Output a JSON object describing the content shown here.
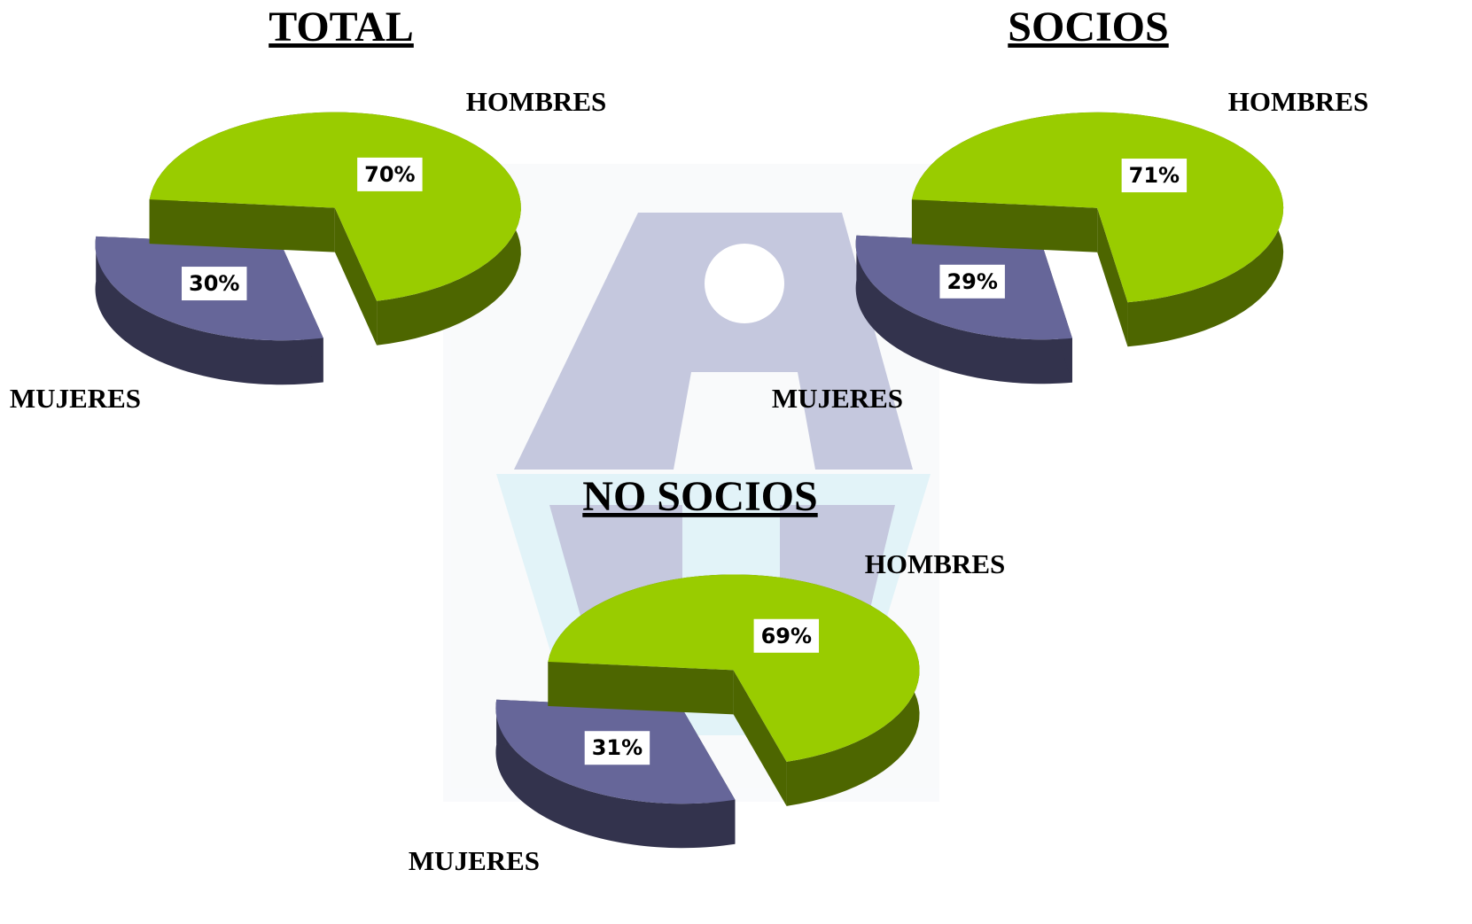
{
  "chart_data": [
    {
      "type": "pie",
      "title": "TOTAL",
      "categories": [
        "HOMBRES",
        "MUJERES"
      ],
      "values": [
        70,
        30
      ],
      "value_labels": [
        "70%",
        "30%"
      ],
      "colors": [
        "#99cc00",
        "#666699"
      ]
    },
    {
      "type": "pie",
      "title": "SOCIOS",
      "categories": [
        "HOMBRES",
        "MUJERES"
      ],
      "values": [
        71,
        29
      ],
      "value_labels": [
        "71%",
        "29%"
      ],
      "colors": [
        "#99cc00",
        "#666699"
      ]
    },
    {
      "type": "pie",
      "title": "NO SOCIOS",
      "categories": [
        "HOMBRES",
        "MUJERES"
      ],
      "values": [
        69,
        31
      ],
      "value_labels": [
        "69%",
        "31%"
      ],
      "colors": [
        "#99cc00",
        "#666699"
      ]
    }
  ]
}
